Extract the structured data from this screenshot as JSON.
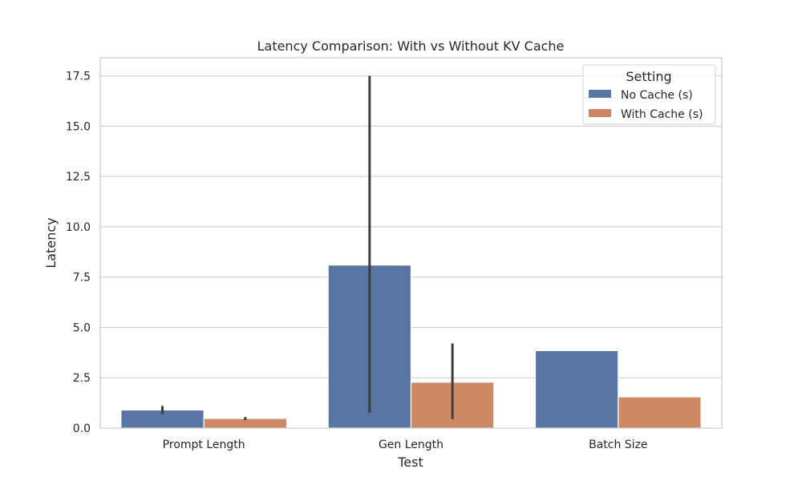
{
  "chart_data": {
    "type": "bar",
    "title": "Latency Comparison: With vs Without KV Cache",
    "xlabel": "Test",
    "ylabel": "Latency",
    "categories": [
      "Prompt Length",
      "Gen Length",
      "Batch Size"
    ],
    "ylim": [
      0,
      18.4
    ],
    "yticks": [
      0.0,
      2.5,
      5.0,
      7.5,
      10.0,
      12.5,
      15.0,
      17.5
    ],
    "ytick_labels": [
      "0.0",
      "2.5",
      "5.0",
      "7.5",
      "10.0",
      "12.5",
      "15.0",
      "17.5"
    ],
    "grid": true,
    "legend": {
      "title": "Setting",
      "placement": "top-right"
    },
    "series": [
      {
        "name": "No Cache (s)",
        "color": "#5975a4",
        "values": [
          0.9,
          8.1,
          3.85
        ],
        "error_low": [
          0.7,
          0.75,
          null
        ],
        "error_high": [
          1.1,
          17.5,
          null
        ]
      },
      {
        "name": "With Cache (s)",
        "color": "#cc8963",
        "values": [
          0.48,
          2.28,
          1.55
        ],
        "error_low": [
          0.4,
          0.45,
          null
        ],
        "error_high": [
          0.55,
          4.2,
          null
        ]
      }
    ]
  }
}
